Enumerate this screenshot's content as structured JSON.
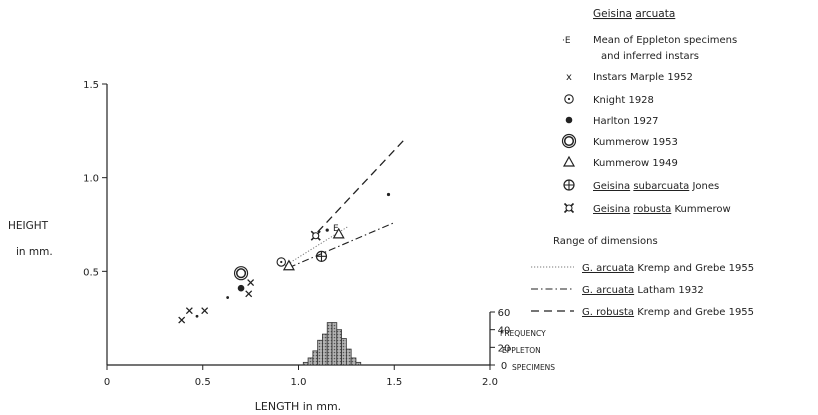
{
  "chart_data": {
    "type": "scatter",
    "xlabel": "LENGTH  in  mm.",
    "ylabel_line1": "HEIGHT",
    "ylabel_line2": "in mm.",
    "xlim": [
      0,
      2.0
    ],
    "ylim": [
      0,
      1.5
    ],
    "x_ticks": [
      0,
      0.5,
      1.0,
      1.5,
      2.0
    ],
    "x_tick_labels": [
      "0",
      "0.5",
      "1.0",
      "1.5",
      "2.0"
    ],
    "y_ticks": [
      0.5,
      1.0,
      1.5
    ],
    "y_tick_labels": [
      "0.5",
      "1.0",
      "1.5"
    ],
    "frequency_axis": {
      "ylim": [
        0,
        60
      ],
      "ticks": [
        0,
        20,
        40,
        60
      ],
      "tick_labels": [
        "0",
        "20",
        "40",
        "60"
      ],
      "label_lines": [
        "FREQUENCY",
        "EPPLETON",
        "SPECIMENS"
      ]
    },
    "histogram": {
      "bin_width": 0.025,
      "bin_starts": [
        1.025,
        1.05,
        1.075,
        1.1,
        1.125,
        1.15,
        1.175,
        1.2,
        1.225,
        1.25,
        1.275,
        1.3,
        1.325
      ],
      "values": [
        3,
        8,
        16,
        28,
        35,
        48,
        48,
        40,
        30,
        18,
        8,
        3,
        0
      ]
    },
    "series": [
      {
        "key": "eppleton_mean",
        "points": [
          [
            1.15,
            0.72
          ],
          [
            1.47,
            0.91
          ]
        ]
      },
      {
        "key": "marple",
        "points": [
          [
            0.39,
            0.24
          ],
          [
            0.43,
            0.29
          ],
          [
            0.51,
            0.29
          ],
          [
            0.74,
            0.38
          ],
          [
            0.75,
            0.44
          ]
        ]
      },
      {
        "key": "knight",
        "points": [
          [
            0.91,
            0.55
          ]
        ]
      },
      {
        "key": "harlton",
        "points": [
          [
            0.7,
            0.41
          ]
        ]
      },
      {
        "key": "kummerow1953",
        "points": [
          [
            0.7,
            0.49
          ]
        ]
      },
      {
        "key": "kummerow1949",
        "points": [
          [
            0.95,
            0.53
          ],
          [
            1.21,
            0.7
          ]
        ]
      },
      {
        "key": "subarcuata",
        "points": [
          [
            1.12,
            0.58
          ]
        ]
      },
      {
        "key": "robusta",
        "points": [
          [
            1.09,
            0.69
          ]
        ]
      }
    ],
    "small_dots": [
      [
        0.47,
        0.26
      ],
      [
        0.63,
        0.36
      ]
    ],
    "E_label": {
      "text": "E",
      "x": 1.17,
      "y": 0.73
    },
    "ranges": [
      {
        "key": "r1",
        "x": [
          0.93,
          1.26
        ],
        "y": [
          0.53,
          0.74
        ]
      },
      {
        "key": "r2",
        "x": [
          0.95,
          1.5
        ],
        "y": [
          0.52,
          0.76
        ]
      },
      {
        "key": "r3",
        "x": [
          1.1,
          1.55
        ],
        "y": [
          0.71,
          1.2
        ]
      }
    ]
  },
  "legend": {
    "title_genus": "Geisina",
    "title_species": "arcuata",
    "entries": [
      {
        "key": "eppleton_mean",
        "symbol_text": "·E",
        "line1": "Mean of Eppleton specimens",
        "line2": "and inferred  instars"
      },
      {
        "key": "marple",
        "symbol_text": "x",
        "text": "Instars  Marple 1952"
      },
      {
        "key": "knight",
        "text": "Knight 1928"
      },
      {
        "key": "harlton",
        "text": "Harlton  1927"
      },
      {
        "key": "kummerow1953",
        "text": "Kummerow 1953"
      },
      {
        "key": "kummerow1949",
        "text": "Kummerow 1949"
      },
      {
        "key": "subarcuata",
        "genus": "Geisina",
        "species": "subarcuata",
        "rest": "Jones"
      },
      {
        "key": "robusta",
        "genus": "Geisina",
        "species": "robusta",
        "rest": "Kummerow"
      }
    ],
    "range_title": "Range of dimensions",
    "range_entries": [
      {
        "key": "r1",
        "name": "G. arcuata",
        "rest": "Kremp and Grebe 1955"
      },
      {
        "key": "r2",
        "name": "G. arcuata",
        "rest": "Latham  1932"
      },
      {
        "key": "r3",
        "name": "G. robusta",
        "rest": "Kremp and Grebe 1955"
      }
    ]
  }
}
